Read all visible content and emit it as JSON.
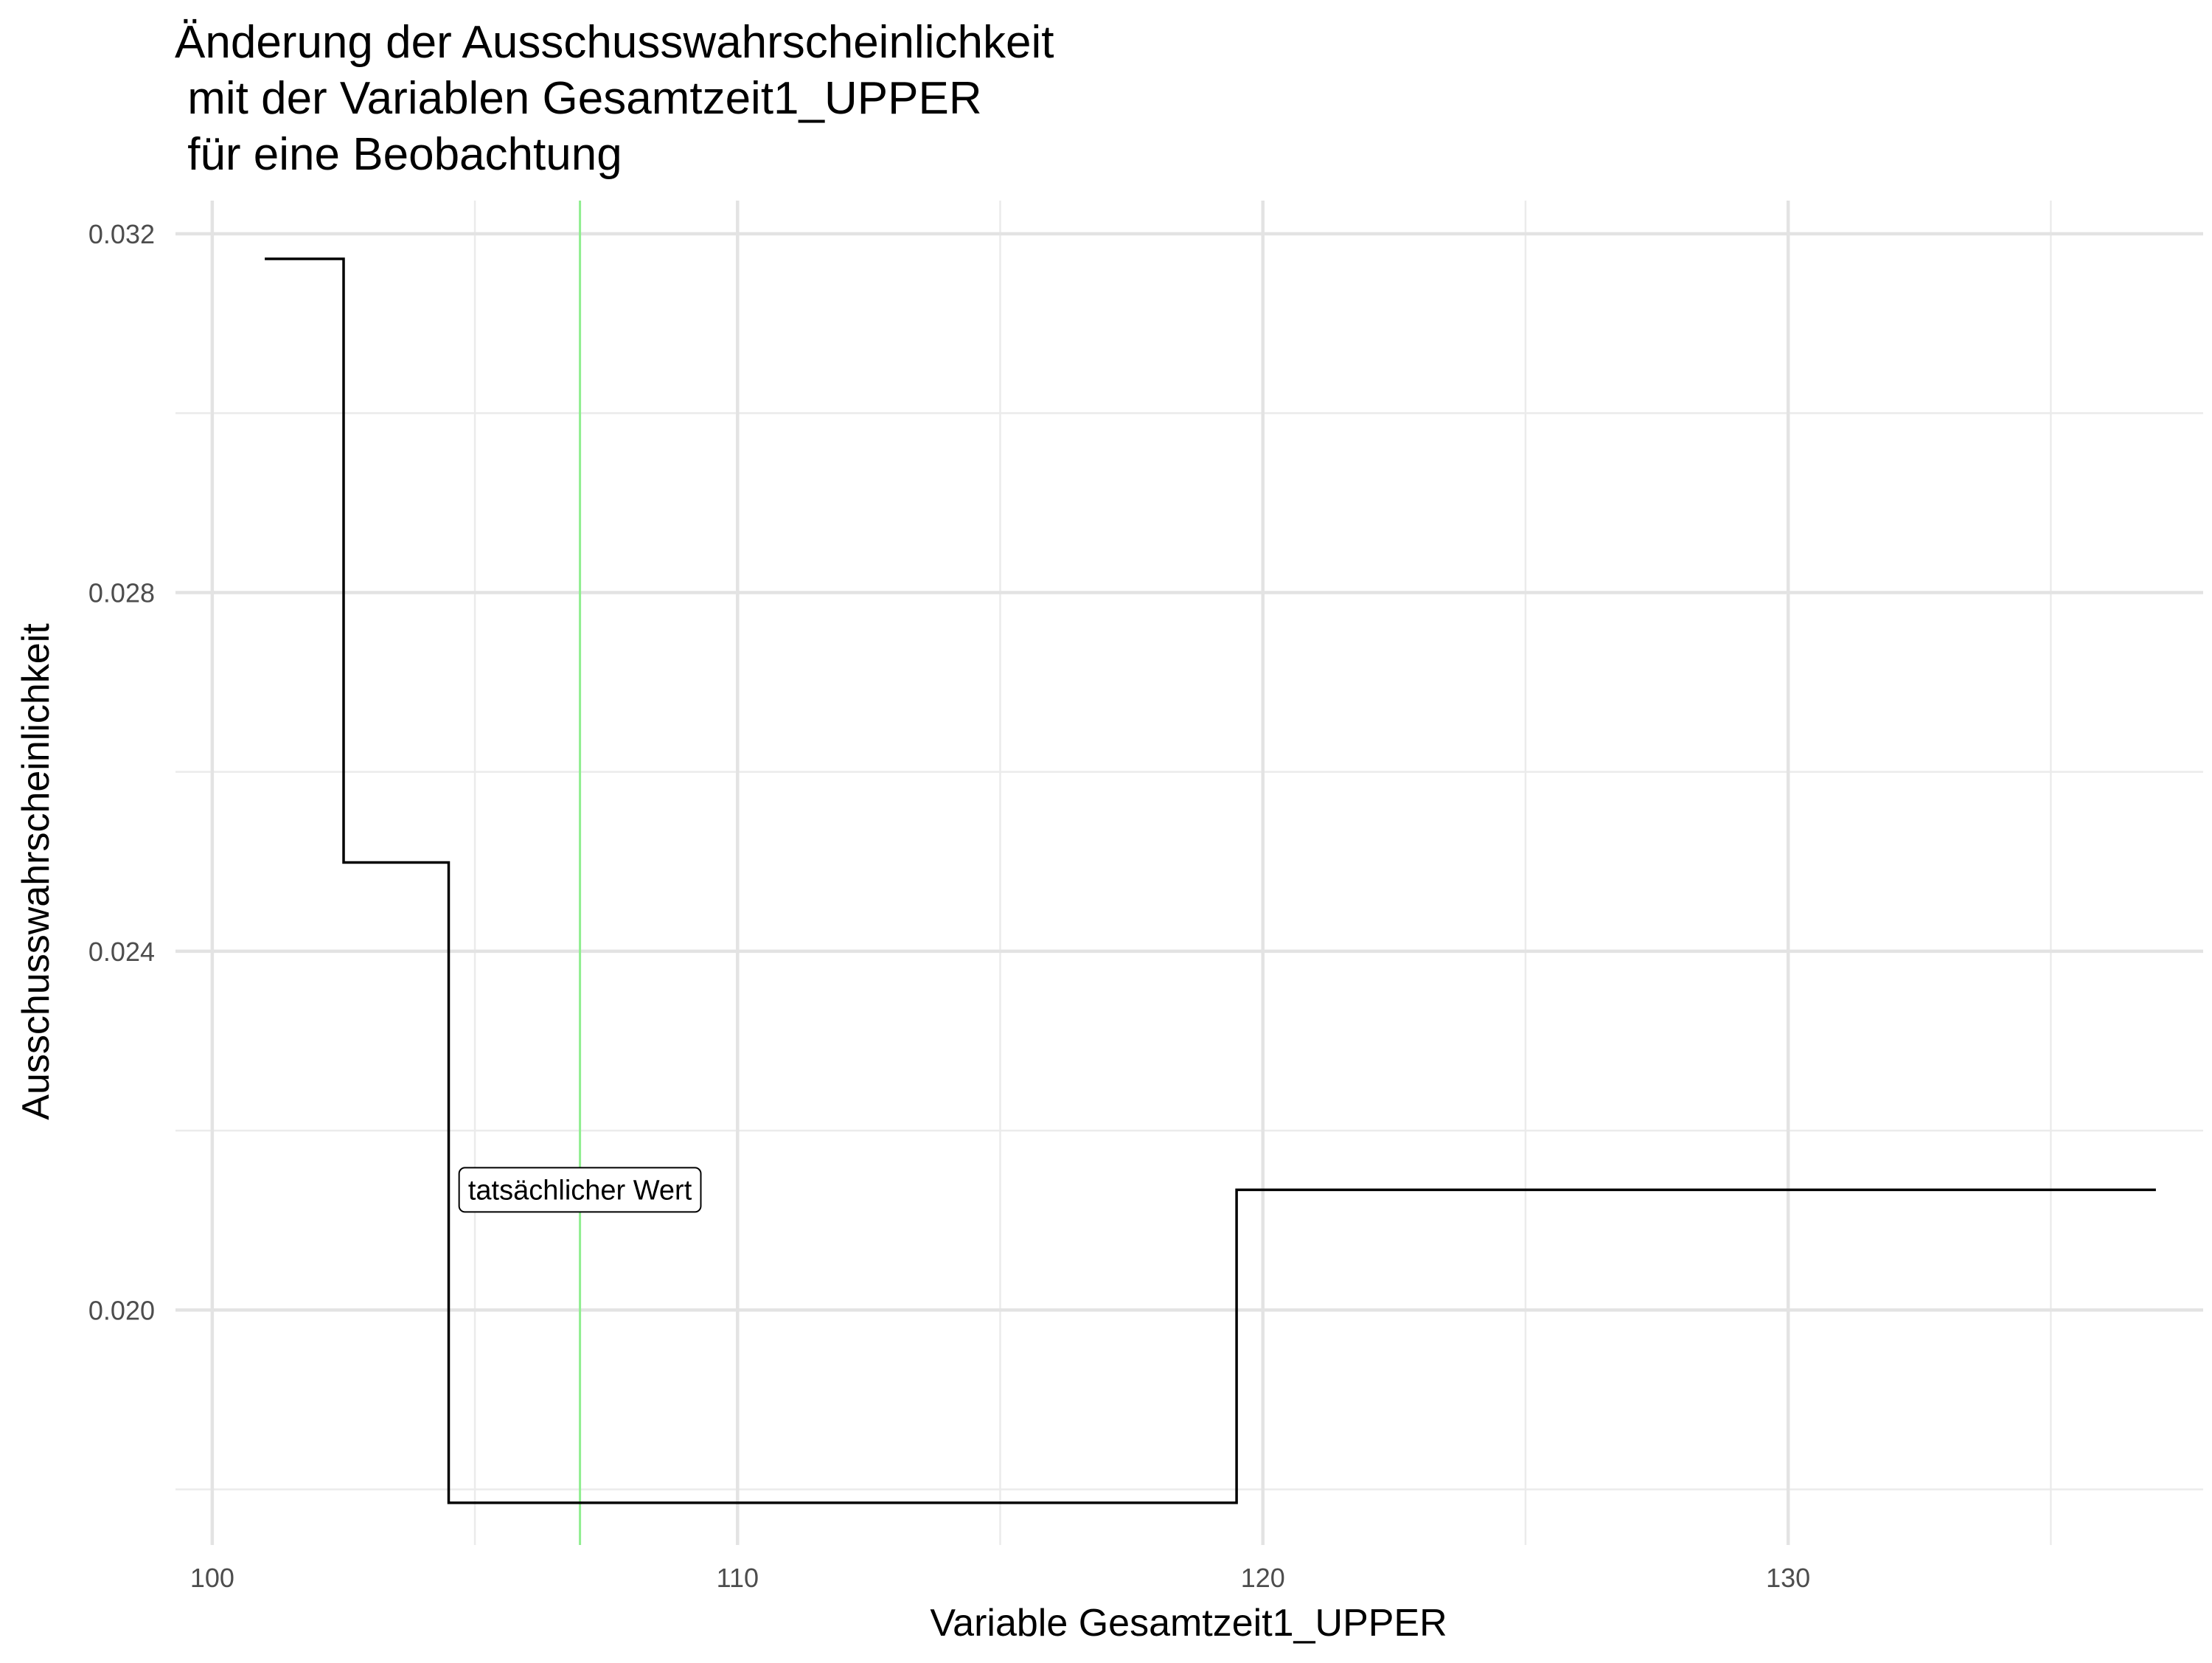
{
  "chart_data": {
    "type": "line",
    "title_lines": [
      "Änderung der Ausschusswahrscheinlichkeit",
      " mit der Variablen Gesamtzeit1_UPPER",
      " für eine Beobachtung"
    ],
    "xlabel": "Variable Gesamtzeit1_UPPER",
    "ylabel": "Ausschusswahrscheinlichkeit",
    "xlim": [
      99.3,
      137.9
    ],
    "ylim": [
      0.01738,
      0.03237
    ],
    "x_ticks": [
      {
        "value": 100,
        "label": "100"
      },
      {
        "value": 110,
        "label": "110"
      },
      {
        "value": 120,
        "label": "120"
      },
      {
        "value": 130,
        "label": "130"
      }
    ],
    "x_minor_ticks": [
      105,
      115,
      125,
      135
    ],
    "y_ticks": [
      {
        "value": 0.02,
        "label": "0.020"
      },
      {
        "value": 0.024,
        "label": "0.024"
      },
      {
        "value": 0.028,
        "label": "0.028"
      },
      {
        "value": 0.032,
        "label": "0.032"
      }
    ],
    "y_minor_ticks": [
      0.018,
      0.022,
      0.026,
      0.03
    ],
    "grid": true,
    "series": [
      {
        "color": "#000000",
        "step": true,
        "points": [
          {
            "x": 101.0,
            "y": 0.03172
          },
          {
            "x": 102.5,
            "y": 0.03172
          },
          {
            "x": 102.5,
            "y": 0.02499
          },
          {
            "x": 104.5,
            "y": 0.02499
          },
          {
            "x": 104.5,
            "y": 0.01785
          },
          {
            "x": 119.5,
            "y": 0.01785
          },
          {
            "x": 119.5,
            "y": 0.02134
          },
          {
            "x": 137.0,
            "y": 0.02134
          }
        ]
      }
    ],
    "reference_line": {
      "x": 107.0,
      "color": "#90ee90",
      "label": "tatsächlicher Wert",
      "label_y": 0.02134
    }
  }
}
